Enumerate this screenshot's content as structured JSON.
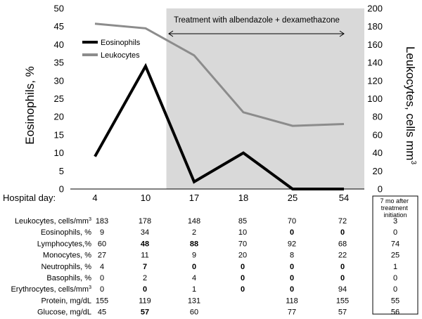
{
  "chart_data": {
    "type": "line",
    "categories": [
      "4",
      "10",
      "17",
      "18",
      "25",
      "54"
    ],
    "series": [
      {
        "name": "Eosinophils",
        "axis": "left",
        "color": "#000000",
        "values": [
          9,
          34,
          2,
          10,
          0,
          0
        ]
      },
      {
        "name": "Leukocytes",
        "axis": "right",
        "color": "#8c8c8c",
        "values": [
          183,
          178,
          148,
          85,
          70,
          72
        ]
      }
    ],
    "ylabel": "Eosinophils, %",
    "ylim": [
      0,
      50
    ],
    "yticks": [
      "0",
      "5",
      "10",
      "15",
      "20",
      "25",
      "30",
      "35",
      "40",
      "45",
      "50"
    ],
    "y2label_main": "Leukocytes, cells mm",
    "y2label_sup": "3",
    "y2lim": [
      0,
      200
    ],
    "y2ticks": [
      "0",
      "20",
      "40",
      "60",
      "80",
      "100",
      "120",
      "140",
      "160",
      "180",
      "200"
    ],
    "xlabel": "Hospital day:",
    "legend_position": "upper-left",
    "annotation": {
      "text": "Treatment with albendazole + dexamethazone",
      "shade_from_x": 13,
      "shade_to_x": 55,
      "shade_color": "#d9d9d9"
    },
    "extra_column_label": [
      "7 mo after",
      "treatment",
      "initiation"
    ],
    "table": {
      "rows": [
        {
          "label_main": "Leukocytes, cells/mm",
          "label_sup": "3",
          "values": [
            "183",
            "178",
            "148",
            "85",
            "70",
            "72"
          ],
          "bold": [
            false,
            false,
            false,
            false,
            false,
            false
          ],
          "extra": "3"
        },
        {
          "label_main": "Eosinophils, %",
          "values": [
            "9",
            "34",
            "2",
            "10",
            "0",
            "0"
          ],
          "bold": [
            false,
            false,
            false,
            false,
            true,
            true
          ],
          "extra": "0"
        },
        {
          "label_main": "Lymphocytes,%",
          "values": [
            "60",
            "48",
            "88",
            "70",
            "92",
            "68"
          ],
          "bold": [
            false,
            true,
            true,
            false,
            false,
            false
          ],
          "extra": "74"
        },
        {
          "label_main": "Monocytes, %",
          "values": [
            "27",
            "11",
            "9",
            "20",
            "8",
            "22"
          ],
          "bold": [
            false,
            false,
            false,
            false,
            false,
            false
          ],
          "extra": "25"
        },
        {
          "label_main": "Neutrophils, %",
          "values": [
            "4",
            "7",
            "0",
            "0",
            "0",
            "0"
          ],
          "bold": [
            false,
            true,
            true,
            true,
            true,
            true
          ],
          "extra": "1"
        },
        {
          "label_main": "Basophils, %",
          "values": [
            "0",
            "2",
            "4",
            "0",
            "0",
            "0"
          ],
          "bold": [
            false,
            false,
            false,
            true,
            true,
            true
          ],
          "extra": "0"
        },
        {
          "label_main": "Erythrocytes, cells/mm",
          "label_sup": "3",
          "values": [
            "0",
            "0",
            "1",
            "0",
            "0",
            "94"
          ],
          "bold": [
            false,
            true,
            false,
            true,
            true,
            false
          ],
          "extra": "0"
        },
        {
          "label_main": "Protein, mg/dL",
          "values": [
            "155",
            "119",
            "131",
            "",
            "118",
            "155"
          ],
          "bold": [
            false,
            false,
            false,
            false,
            false,
            false
          ],
          "extra": "55"
        },
        {
          "label_main": "Glucose, mg/dL",
          "values": [
            "45",
            "57",
            "60",
            "",
            "77",
            "57"
          ],
          "bold": [
            false,
            true,
            false,
            false,
            false,
            false
          ],
          "extra": "56"
        }
      ]
    }
  }
}
